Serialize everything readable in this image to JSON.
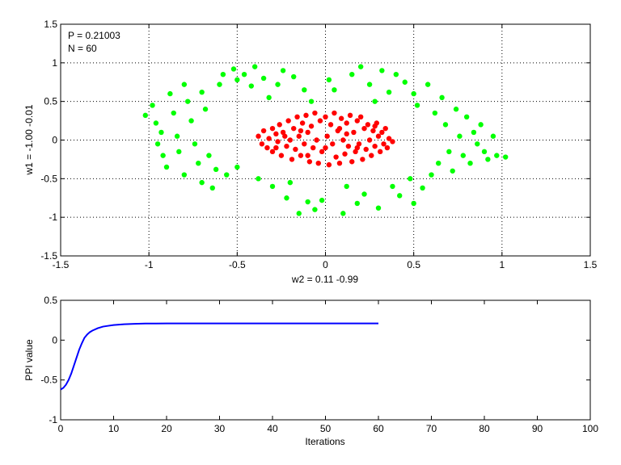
{
  "chart_data": [
    {
      "type": "scatter",
      "xlabel": "w2 = 0.11  -0.99",
      "ylabel": "w1 = -1.00  -0.01",
      "xlim": [
        -1.5,
        1.5
      ],
      "ylim": [
        -1.5,
        1.5
      ],
      "xticks": [
        -1.5,
        -1,
        -0.5,
        0,
        0.5,
        1,
        1.5
      ],
      "yticks": [
        -1.5,
        -1,
        -0.5,
        0,
        0.5,
        1,
        1.5
      ],
      "xtick_labels": [
        "-1.5",
        "-1",
        "-0.5",
        "0",
        "0.5",
        "1",
        "1.5"
      ],
      "ytick_labels": [
        "-1.5",
        "-1",
        "-0.5",
        "0",
        "0.5",
        "1",
        "1.5"
      ],
      "grid": true,
      "annotations": [
        "P = 0.21003",
        "N = 60"
      ],
      "series": [
        {
          "color": "#00ff00",
          "points": [
            [
              -1.02,
              0.32
            ],
            [
              -0.98,
              0.45
            ],
            [
              -0.96,
              0.22
            ],
            [
              -0.93,
              0.1
            ],
            [
              -0.95,
              -0.05
            ],
            [
              -0.92,
              -0.2
            ],
            [
              -0.9,
              -0.35
            ],
            [
              -0.88,
              0.6
            ],
            [
              -0.86,
              0.35
            ],
            [
              -0.84,
              0.05
            ],
            [
              -0.83,
              -0.15
            ],
            [
              -0.8,
              -0.45
            ],
            [
              -0.8,
              0.72
            ],
            [
              -0.78,
              0.5
            ],
            [
              -0.76,
              0.25
            ],
            [
              -0.74,
              -0.05
            ],
            [
              -0.72,
              -0.3
            ],
            [
              -0.7,
              -0.55
            ],
            [
              -0.7,
              0.62
            ],
            [
              -0.68,
              0.4
            ],
            [
              -0.66,
              -0.2
            ],
            [
              -0.64,
              -0.62
            ],
            [
              -0.62,
              -0.38
            ],
            [
              -0.6,
              0.72
            ],
            [
              -0.58,
              0.85
            ],
            [
              -0.56,
              -0.45
            ],
            [
              -0.52,
              0.92
            ],
            [
              -0.5,
              0.78
            ],
            [
              -0.5,
              -0.35
            ],
            [
              -0.46,
              0.85
            ],
            [
              -0.42,
              0.7
            ],
            [
              -0.4,
              0.95
            ],
            [
              -0.38,
              -0.5
            ],
            [
              -0.35,
              0.8
            ],
            [
              -0.32,
              0.55
            ],
            [
              -0.3,
              -0.6
            ],
            [
              -0.27,
              0.72
            ],
            [
              -0.24,
              0.9
            ],
            [
              -0.22,
              -0.75
            ],
            [
              -0.2,
              -0.55
            ],
            [
              -0.18,
              0.82
            ],
            [
              -0.15,
              -0.95
            ],
            [
              -0.12,
              0.65
            ],
            [
              -0.1,
              -0.8
            ],
            [
              -0.08,
              0.5
            ],
            [
              -0.06,
              -0.9
            ],
            [
              -0.02,
              -0.78
            ],
            [
              0.02,
              0.78
            ],
            [
              0.05,
              0.65
            ],
            [
              0.1,
              -0.95
            ],
            [
              0.12,
              -0.6
            ],
            [
              0.15,
              0.85
            ],
            [
              0.18,
              -0.82
            ],
            [
              0.2,
              0.95
            ],
            [
              0.22,
              -0.7
            ],
            [
              0.25,
              0.72
            ],
            [
              0.28,
              0.5
            ],
            [
              0.3,
              -0.88
            ],
            [
              0.32,
              0.9
            ],
            [
              0.36,
              0.62
            ],
            [
              0.38,
              -0.6
            ],
            [
              0.4,
              0.85
            ],
            [
              0.42,
              -0.72
            ],
            [
              0.45,
              0.75
            ],
            [
              0.48,
              -0.5
            ],
            [
              0.5,
              0.6
            ],
            [
              0.5,
              -0.82
            ],
            [
              0.52,
              0.45
            ],
            [
              0.55,
              -0.62
            ],
            [
              0.58,
              0.72
            ],
            [
              0.6,
              -0.45
            ],
            [
              0.62,
              0.35
            ],
            [
              0.64,
              -0.3
            ],
            [
              0.66,
              0.55
            ],
            [
              0.68,
              0.2
            ],
            [
              0.7,
              -0.15
            ],
            [
              0.72,
              -0.4
            ],
            [
              0.74,
              0.4
            ],
            [
              0.76,
              0.05
            ],
            [
              0.78,
              -0.2
            ],
            [
              0.8,
              0.3
            ],
            [
              0.82,
              -0.3
            ],
            [
              0.84,
              0.1
            ],
            [
              0.86,
              -0.05
            ],
            [
              0.88,
              0.2
            ],
            [
              0.9,
              -0.15
            ],
            [
              0.92,
              -0.25
            ],
            [
              0.95,
              0.05
            ],
            [
              0.97,
              -0.2
            ],
            [
              1.02,
              -0.22
            ]
          ]
        },
        {
          "color": "#ff0000",
          "points": [
            [
              -0.38,
              0.05
            ],
            [
              -0.36,
              -0.05
            ],
            [
              -0.35,
              0.12
            ],
            [
              -0.33,
              -0.1
            ],
            [
              -0.32,
              0.02
            ],
            [
              -0.3,
              0.15
            ],
            [
              -0.3,
              -0.15
            ],
            [
              -0.28,
              0.08
            ],
            [
              -0.27,
              -0.02
            ],
            [
              -0.26,
              0.2
            ],
            [
              -0.25,
              -0.2
            ],
            [
              -0.24,
              0.1
            ],
            [
              -0.22,
              -0.08
            ],
            [
              -0.21,
              0.25
            ],
            [
              -0.2,
              0.0
            ],
            [
              -0.19,
              -0.25
            ],
            [
              -0.18,
              0.15
            ],
            [
              -0.17,
              -0.12
            ],
            [
              -0.16,
              0.3
            ],
            [
              -0.15,
              0.05
            ],
            [
              -0.14,
              -0.2
            ],
            [
              -0.13,
              0.22
            ],
            [
              -0.12,
              -0.05
            ],
            [
              -0.11,
              0.32
            ],
            [
              -0.1,
              0.1
            ],
            [
              -0.09,
              -0.28
            ],
            [
              -0.08,
              0.18
            ],
            [
              -0.07,
              -0.1
            ],
            [
              -0.06,
              0.35
            ],
            [
              -0.05,
              0.0
            ],
            [
              -0.04,
              -0.3
            ],
            [
              -0.03,
              0.25
            ],
            [
              -0.02,
              -0.15
            ],
            [
              0.0,
              0.3
            ],
            [
              0.01,
              0.05
            ],
            [
              0.02,
              -0.32
            ],
            [
              0.03,
              0.2
            ],
            [
              0.04,
              -0.05
            ],
            [
              0.05,
              0.35
            ],
            [
              0.06,
              -0.22
            ],
            [
              0.07,
              0.12
            ],
            [
              0.08,
              -0.3
            ],
            [
              0.09,
              0.28
            ],
            [
              0.1,
              0.0
            ],
            [
              0.11,
              -0.18
            ],
            [
              0.12,
              0.22
            ],
            [
              0.13,
              -0.08
            ],
            [
              0.14,
              0.32
            ],
            [
              0.15,
              -0.28
            ],
            [
              0.16,
              0.1
            ],
            [
              0.17,
              -0.15
            ],
            [
              0.18,
              0.25
            ],
            [
              0.19,
              -0.05
            ],
            [
              0.2,
              0.3
            ],
            [
              0.21,
              -0.25
            ],
            [
              0.22,
              0.15
            ],
            [
              0.23,
              -0.12
            ],
            [
              0.24,
              0.2
            ],
            [
              0.25,
              0.0
            ],
            [
              0.26,
              -0.2
            ],
            [
              0.27,
              0.12
            ],
            [
              0.28,
              -0.08
            ],
            [
              0.29,
              0.22
            ],
            [
              0.3,
              0.05
            ],
            [
              0.31,
              -0.15
            ],
            [
              0.32,
              0.1
            ],
            [
              0.33,
              -0.05
            ],
            [
              0.34,
              0.15
            ],
            [
              0.35,
              -0.1
            ],
            [
              0.36,
              0.02
            ],
            [
              0.38,
              -0.02
            ],
            [
              -0.28,
              -0.1
            ],
            [
              -0.23,
              0.05
            ],
            [
              -0.1,
              -0.2
            ],
            [
              0.0,
              -0.1
            ],
            [
              0.08,
              0.15
            ],
            [
              0.18,
              -0.1
            ],
            [
              0.28,
              0.18
            ],
            [
              -0.14,
              0.12
            ],
            [
              0.12,
              0.08
            ]
          ]
        }
      ]
    },
    {
      "type": "line",
      "xlabel": "Iterations",
      "ylabel": "PPI value",
      "xlim": [
        0,
        100
      ],
      "ylim": [
        -1,
        0.5
      ],
      "xticks": [
        0,
        10,
        20,
        30,
        40,
        50,
        60,
        70,
        80,
        90,
        100
      ],
      "yticks": [
        -1,
        -0.5,
        0,
        0.5
      ],
      "xtick_labels": [
        "0",
        "10",
        "20",
        "30",
        "40",
        "50",
        "60",
        "70",
        "80",
        "90",
        "100"
      ],
      "ytick_labels": [
        "-1",
        "-0.5",
        "0",
        "0.5"
      ],
      "grid": false,
      "series": [
        {
          "color": "#0000ff",
          "x": [
            0,
            0.5,
            1,
            1.5,
            2,
            2.5,
            3,
            3.5,
            4,
            4.5,
            5,
            5.5,
            6,
            7,
            8,
            9,
            10,
            12,
            14,
            16,
            18,
            20,
            25,
            30,
            35,
            40,
            45,
            50,
            55,
            60
          ],
          "y": [
            -0.62,
            -0.6,
            -0.56,
            -0.5,
            -0.42,
            -0.32,
            -0.22,
            -0.12,
            -0.04,
            0.03,
            0.07,
            0.1,
            0.12,
            0.15,
            0.17,
            0.18,
            0.19,
            0.2,
            0.205,
            0.208,
            0.209,
            0.21,
            0.21,
            0.21,
            0.21,
            0.21,
            0.21,
            0.21,
            0.21,
            0.21
          ]
        }
      ]
    }
  ]
}
